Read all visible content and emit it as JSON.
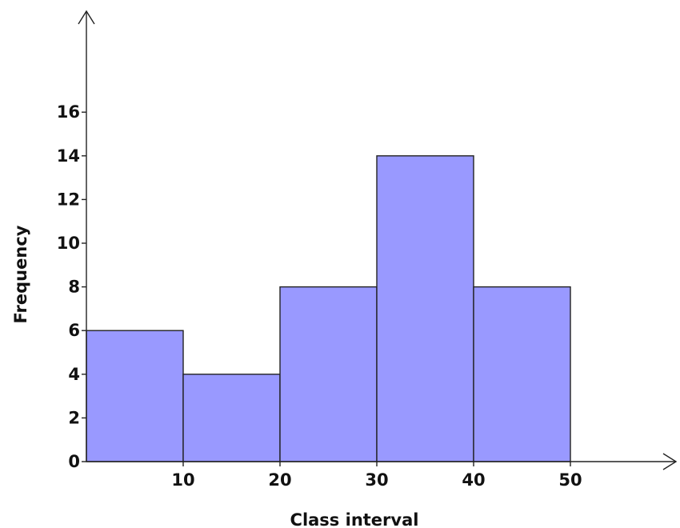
{
  "chart_data": {
    "type": "bar",
    "histogram": true,
    "bins": [
      {
        "start": 0,
        "end": 10,
        "value": 6
      },
      {
        "start": 10,
        "end": 20,
        "value": 4
      },
      {
        "start": 20,
        "end": 30,
        "value": 8
      },
      {
        "start": 30,
        "end": 40,
        "value": 14
      },
      {
        "start": 40,
        "end": 50,
        "value": 8
      }
    ],
    "values": [
      6,
      4,
      8,
      14,
      8
    ],
    "title": "",
    "xlabel": "Class interval",
    "ylabel": "Frequency",
    "xlim": [
      0,
      60
    ],
    "ylim": [
      0,
      20
    ],
    "x_ticks": [
      10,
      20,
      30,
      40,
      50
    ],
    "y_ticks": [
      0,
      2,
      4,
      6,
      8,
      10,
      12,
      14,
      16
    ],
    "grid": false,
    "legend": "none",
    "bar_color": "#9999ff",
    "edge_color": "#222222"
  }
}
